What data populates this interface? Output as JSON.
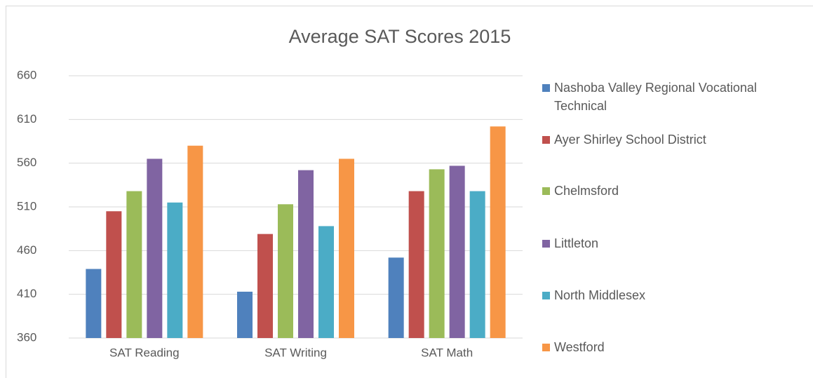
{
  "chart_data": {
    "type": "bar",
    "title": "Average SAT Scores 2015",
    "categories": [
      "SAT Reading",
      "SAT Writing",
      "SAT Math"
    ],
    "series": [
      {
        "name": "Nashoba Valley Regional Vocational Technical",
        "color": "#4f81bd",
        "values": [
          439,
          413,
          452
        ]
      },
      {
        "name": "Ayer Shirley School District",
        "color": "#c0504d",
        "values": [
          505,
          479,
          528
        ]
      },
      {
        "name": "Chelmsford",
        "color": "#9bbb59",
        "values": [
          528,
          513,
          553
        ]
      },
      {
        "name": "Littleton",
        "color": "#8064a2",
        "values": [
          565,
          552,
          557
        ]
      },
      {
        "name": "North Middlesex",
        "color": "#4bacc6",
        "values": [
          515,
          488,
          528
        ]
      },
      {
        "name": "Westford",
        "color": "#f79646",
        "values": [
          580,
          565,
          602
        ]
      }
    ],
    "ylim": [
      360,
      660
    ],
    "yticks": [
      360,
      410,
      460,
      510,
      560,
      610,
      660
    ],
    "grid": true,
    "legend": "right"
  }
}
